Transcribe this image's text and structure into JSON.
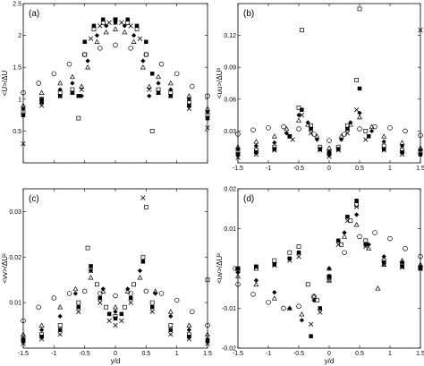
{
  "chart_data": [
    {
      "type": "scatter",
      "panel_label": "(a)",
      "ylabel": "<U>/ΔU",
      "xlabel": "",
      "xlim": [
        -1.5,
        1.5
      ],
      "ylim": [
        0,
        2.5
      ],
      "xticks": [
        -1.5,
        -1,
        -0.5,
        0,
        0.5,
        1,
        1.5
      ],
      "xtick_labels": [
        "",
        "",
        "",
        "",
        "",
        "",
        ""
      ],
      "yticks": [
        0.5,
        1,
        1.5,
        2,
        2.5
      ],
      "ytick_labels": [
        "0.5",
        "1",
        "1.5",
        "2",
        "2.5"
      ],
      "series": [
        {
          "marker": "circle-open",
          "x": [
            -1.5,
            -1.25,
            -1.0,
            -0.75,
            -0.5,
            -0.25,
            0.0,
            0.25,
            0.5,
            0.75,
            1.0,
            1.25,
            1.5
          ],
          "y": [
            1.1,
            1.25,
            1.4,
            1.55,
            1.7,
            1.8,
            1.85,
            1.8,
            1.7,
            1.55,
            1.4,
            1.2,
            1.05
          ]
        },
        {
          "marker": "triangle-open",
          "x": [
            -1.5,
            -1.2,
            -0.9,
            -0.7,
            -0.55,
            -0.45,
            -0.3,
            -0.15,
            0.0,
            0.15,
            0.3,
            0.45,
            0.55,
            0.7,
            0.9,
            1.2,
            1.5
          ],
          "y": [
            0.9,
            1.1,
            1.25,
            1.35,
            1.2,
            1.5,
            1.9,
            2.05,
            2.1,
            2.05,
            1.9,
            1.5,
            1.2,
            1.35,
            1.25,
            1.05,
            0.85
          ]
        },
        {
          "marker": "diamond-filled",
          "x": [
            -1.5,
            -1.2,
            -0.9,
            -0.7,
            -0.55,
            -0.45,
            -0.3,
            -0.15,
            0.0,
            0.15,
            0.3,
            0.45,
            0.55,
            0.7,
            0.9,
            1.2,
            1.5
          ],
          "y": [
            0.85,
            1.0,
            1.15,
            1.25,
            1.05,
            1.6,
            2.0,
            2.15,
            2.2,
            2.15,
            2.0,
            1.6,
            1.05,
            1.25,
            1.15,
            1.0,
            0.8
          ]
        },
        {
          "marker": "square-open",
          "x": [
            -1.5,
            -1.2,
            -0.9,
            -0.7,
            -0.6,
            -0.5,
            -0.35,
            -0.2,
            0.0,
            0.2,
            0.35,
            0.5,
            0.6,
            0.7,
            0.9,
            1.2,
            1.5
          ],
          "y": [
            0.8,
            1.0,
            1.1,
            1.15,
            0.7,
            1.7,
            2.1,
            2.2,
            2.25,
            2.2,
            2.1,
            1.7,
            0.5,
            1.15,
            1.1,
            0.95,
            0.75
          ]
        },
        {
          "marker": "square-filled",
          "x": [
            -1.5,
            -1.2,
            -0.9,
            -0.7,
            -0.6,
            -0.5,
            -0.35,
            -0.2,
            0.0,
            0.2,
            0.35,
            0.5,
            0.6,
            0.7,
            0.9,
            1.2,
            1.5
          ],
          "y": [
            0.75,
            0.95,
            1.05,
            1.1,
            1.05,
            1.9,
            2.15,
            2.25,
            2.25,
            2.25,
            2.15,
            1.9,
            1.4,
            1.1,
            1.05,
            0.9,
            0.7
          ]
        },
        {
          "marker": "cross",
          "x": [
            -1.5,
            -1.2,
            -0.9,
            -0.7,
            -0.55,
            -0.4,
            -0.25,
            -0.1,
            0.0,
            0.1,
            0.25,
            0.4,
            0.55,
            0.7,
            0.9,
            1.2,
            1.5
          ],
          "y": [
            0.3,
            0.9,
            1.05,
            1.1,
            1.15,
            1.95,
            2.15,
            2.2,
            2.2,
            2.2,
            2.15,
            1.95,
            1.15,
            1.1,
            1.05,
            0.85,
            0.55
          ]
        }
      ]
    },
    {
      "type": "scatter",
      "panel_label": "(b)",
      "ylabel": "<uu>/ΔU²",
      "xlabel": "",
      "xlim": [
        -1.5,
        1.5
      ],
      "ylim": [
        0.0,
        0.15
      ],
      "xticks": [
        -1.5,
        -1,
        -0.5,
        0,
        0.5,
        1,
        1.5
      ],
      "xtick_labels": [
        "-1.5",
        "-1",
        "-0.5",
        "0",
        "0.5",
        "1",
        "1.5"
      ],
      "yticks": [
        0.03,
        0.06,
        0.09,
        0.12
      ],
      "ytick_labels": [
        "0.03",
        "0.06",
        "0.09",
        "0.12"
      ],
      "series": [
        {
          "marker": "circle-open",
          "x": [
            -1.5,
            -1.25,
            -1.0,
            -0.75,
            -0.5,
            -0.25,
            0.0,
            0.25,
            0.5,
            0.75,
            1.0,
            1.25,
            1.5
          ],
          "y": [
            0.027,
            0.031,
            0.033,
            0.034,
            0.032,
            0.027,
            0.021,
            0.027,
            0.032,
            0.034,
            0.033,
            0.03,
            0.026
          ]
        },
        {
          "marker": "triangle-open",
          "x": [
            -1.5,
            -1.2,
            -0.9,
            -0.7,
            -0.5,
            -0.35,
            -0.2,
            0.0,
            0.2,
            0.35,
            0.5,
            0.7,
            0.9,
            1.2,
            1.5
          ],
          "y": [
            0.015,
            0.02,
            0.025,
            0.032,
            0.04,
            0.036,
            0.025,
            0.014,
            0.025,
            0.036,
            0.043,
            0.034,
            0.025,
            0.019,
            0.014
          ]
        },
        {
          "marker": "diamond-filled",
          "x": [
            -1.5,
            -1.2,
            -0.9,
            -0.7,
            -0.5,
            -0.35,
            -0.2,
            0.0,
            0.2,
            0.35,
            0.5,
            0.7,
            0.9,
            1.2,
            1.5
          ],
          "y": [
            0.013,
            0.016,
            0.019,
            0.028,
            0.045,
            0.038,
            0.022,
            0.01,
            0.022,
            0.038,
            0.047,
            0.03,
            0.02,
            0.016,
            0.012
          ]
        },
        {
          "marker": "square-open",
          "x": [
            -1.5,
            -1.2,
            -0.9,
            -0.65,
            -0.5,
            -0.45,
            -0.3,
            -0.15,
            0.0,
            0.15,
            0.3,
            0.45,
            0.5,
            0.6,
            0.9,
            1.2,
            1.5
          ],
          "y": [
            0.01,
            0.012,
            0.015,
            0.025,
            0.052,
            0.125,
            0.035,
            0.015,
            0.01,
            0.015,
            0.035,
            0.078,
            0.145,
            0.03,
            0.016,
            0.012,
            0.01
          ]
        },
        {
          "marker": "square-filled",
          "x": [
            -1.5,
            -1.2,
            -0.9,
            -0.65,
            -0.45,
            -0.3,
            -0.15,
            0.0,
            0.15,
            0.3,
            0.5,
            0.65,
            0.9,
            1.2,
            1.5
          ],
          "y": [
            0.008,
            0.01,
            0.013,
            0.025,
            0.05,
            0.032,
            0.013,
            0.008,
            0.013,
            0.032,
            0.07,
            0.025,
            0.013,
            0.01,
            0.008
          ]
        },
        {
          "marker": "cross",
          "x": [
            -1.5,
            -1.2,
            -0.9,
            -0.6,
            -0.45,
            -0.3,
            -0.15,
            0.0,
            0.15,
            0.3,
            0.45,
            0.6,
            0.9,
            1.2,
            1.5
          ],
          "y": [
            0.005,
            0.008,
            0.012,
            0.022,
            0.045,
            0.028,
            0.012,
            0.006,
            0.012,
            0.028,
            0.05,
            0.022,
            0.012,
            0.008,
            0.125
          ]
        }
      ]
    },
    {
      "type": "scatter",
      "panel_label": "(c)",
      "ylabel": "<vv>/ΔU²",
      "xlabel": "y/d",
      "xlim": [
        -1.5,
        1.5
      ],
      "ylim": [
        0.0,
        0.035
      ],
      "xticks": [
        -1.5,
        -1,
        -0.5,
        0,
        0.5,
        1,
        1.5
      ],
      "xtick_labels": [
        "-1.5",
        "-1",
        "-0.5",
        "0",
        "0.5",
        "1",
        "1.5"
      ],
      "yticks": [
        0.01,
        0.02,
        0.03
      ],
      "ytick_labels": [
        "0.01",
        "0.02",
        "0.03"
      ],
      "series": [
        {
          "marker": "circle-open",
          "x": [
            -1.5,
            -1.25,
            -1.0,
            -0.75,
            -0.5,
            -0.25,
            0.0,
            0.25,
            0.5,
            0.75,
            1.0,
            1.25,
            1.5
          ],
          "y": [
            0.006,
            0.009,
            0.011,
            0.012,
            0.0125,
            0.012,
            0.0115,
            0.012,
            0.0125,
            0.012,
            0.0105,
            0.008,
            0.005
          ]
        },
        {
          "marker": "triangle-open",
          "x": [
            -1.5,
            -1.2,
            -0.9,
            -0.65,
            -0.4,
            -0.2,
            0.0,
            0.2,
            0.4,
            0.65,
            0.9,
            1.2,
            1.5
          ],
          "y": [
            0.003,
            0.005,
            0.009,
            0.013,
            0.0155,
            0.0125,
            0.009,
            0.0125,
            0.0155,
            0.0125,
            0.008,
            0.005,
            0.003
          ]
        },
        {
          "marker": "diamond-filled",
          "x": [
            -1.5,
            -1.2,
            -0.9,
            -0.65,
            -0.4,
            -0.2,
            0.0,
            0.2,
            0.4,
            0.65,
            0.9,
            1.2,
            1.5
          ],
          "y": [
            0.002,
            0.004,
            0.007,
            0.012,
            0.017,
            0.013,
            0.008,
            0.013,
            0.017,
            0.012,
            0.007,
            0.004,
            0.002
          ]
        },
        {
          "marker": "square-open",
          "x": [
            -1.5,
            -1.2,
            -0.9,
            -0.6,
            -0.45,
            -0.3,
            -0.15,
            0.0,
            0.15,
            0.3,
            0.45,
            0.5,
            0.6,
            0.9,
            1.2,
            1.5
          ],
          "y": [
            0.002,
            0.003,
            0.005,
            0.01,
            0.022,
            0.014,
            0.009,
            0.007,
            0.009,
            0.014,
            0.02,
            0.031,
            0.01,
            0.005,
            0.003,
            0.015
          ]
        },
        {
          "marker": "square-filled",
          "x": [
            -1.5,
            -1.2,
            -0.9,
            -0.6,
            -0.4,
            -0.25,
            -0.1,
            0.0,
            0.1,
            0.25,
            0.45,
            0.6,
            0.9,
            1.2,
            1.5
          ],
          "y": [
            0.0015,
            0.0025,
            0.004,
            0.009,
            0.018,
            0.011,
            0.0075,
            0.0065,
            0.0075,
            0.011,
            0.019,
            0.009,
            0.004,
            0.0025,
            0.0015
          ]
        },
        {
          "marker": "cross",
          "x": [
            -1.5,
            -1.2,
            -0.9,
            -0.6,
            -0.4,
            -0.25,
            -0.1,
            0.0,
            0.1,
            0.25,
            0.45,
            0.6,
            0.9,
            1.2,
            1.5
          ],
          "y": [
            0.001,
            0.002,
            0.003,
            0.008,
            0.017,
            0.01,
            0.006,
            0.005,
            0.006,
            0.01,
            0.033,
            0.008,
            0.003,
            0.002,
            0.001
          ]
        }
      ]
    },
    {
      "type": "scatter",
      "panel_label": "(d)",
      "ylabel": "<uv>/ΔU²",
      "xlabel": "y/d",
      "xlim": [
        -1.5,
        1.5
      ],
      "ylim": [
        -0.02,
        0.02
      ],
      "xticks": [
        -1.5,
        -1,
        -0.5,
        0,
        0.5,
        1,
        1.5
      ],
      "xtick_labels": [
        "-1.5",
        "-1",
        "-0.5",
        "0",
        "0.5",
        "1",
        "1.5"
      ],
      "yticks": [
        -0.02,
        -0.01,
        0,
        0.01,
        0.02
      ],
      "ytick_labels": [
        "-0.02",
        "-0.01",
        "0",
        "0.01",
        "0.02"
      ],
      "series": [
        {
          "marker": "circle-open",
          "x": [
            -1.5,
            -1.25,
            -1.0,
            -0.75,
            -0.5,
            -0.25,
            0.0,
            0.25,
            0.5,
            0.75,
            1.0,
            1.25,
            1.5
          ],
          "y": [
            -0.004,
            -0.0065,
            -0.0085,
            -0.01,
            -0.0095,
            -0.007,
            -0.002,
            0.004,
            0.008,
            0.009,
            0.0075,
            0.005,
            0.003
          ]
        },
        {
          "marker": "triangle-open",
          "x": [
            -1.5,
            -1.2,
            -0.9,
            -0.65,
            -0.45,
            -0.25,
            0.0,
            0.25,
            0.45,
            0.65,
            0.8,
            0.9,
            1.2,
            1.5
          ],
          "y": [
            -0.002,
            -0.004,
            -0.0075,
            -0.01,
            -0.0115,
            -0.007,
            0.0,
            0.008,
            0.011,
            0.005,
            -0.005,
            0.001,
            0.002,
            0.001
          ]
        },
        {
          "marker": "diamond-filled",
          "x": [
            -1.5,
            -1.2,
            -0.9,
            -0.65,
            -0.45,
            -0.25,
            0.0,
            0.25,
            0.45,
            0.65,
            0.9,
            1.2,
            1.5
          ],
          "y": [
            -0.001,
            -0.003,
            -0.006,
            -0.01,
            -0.013,
            -0.008,
            0.0,
            0.009,
            0.0135,
            0.006,
            0.003,
            0.0015,
            0.0005
          ]
        },
        {
          "marker": "square-open",
          "x": [
            -1.5,
            -1.2,
            -0.9,
            -0.65,
            -0.5,
            -0.35,
            -0.2,
            0.0,
            0.2,
            0.35,
            0.45,
            0.6,
            0.9,
            1.2,
            1.5
          ],
          "y": [
            -0.0005,
            0.0,
            0.002,
            0.004,
            0.0055,
            -0.004,
            -0.008,
            -0.003,
            0.006,
            0.012,
            0.016,
            0.007,
            0.002,
            0.001,
            0.0
          ]
        },
        {
          "marker": "square-filled",
          "x": [
            -1.5,
            -1.2,
            -0.9,
            -0.65,
            -0.5,
            -0.3,
            -0.15,
            0.0,
            0.15,
            0.3,
            0.45,
            0.6,
            0.9,
            1.2,
            1.5
          ],
          "y": [
            0.0,
            0.0005,
            0.001,
            0.0025,
            0.004,
            -0.017,
            -0.01,
            -0.002,
            0.007,
            0.013,
            0.017,
            0.006,
            0.0015,
            0.0005,
            0.0
          ]
        },
        {
          "marker": "cross",
          "x": [
            -1.5,
            -1.2,
            -0.9,
            -0.65,
            -0.5,
            -0.3,
            -0.15,
            0.0,
            0.15,
            0.3,
            0.45,
            0.6,
            0.9,
            1.2,
            1.5
          ],
          "y": [
            0.0,
            0.0003,
            0.0008,
            0.002,
            0.003,
            -0.014,
            -0.011,
            -0.003,
            0.006,
            0.012,
            0.0155,
            0.0055,
            0.001,
            0.0003,
            0.0
          ]
        }
      ]
    }
  ]
}
